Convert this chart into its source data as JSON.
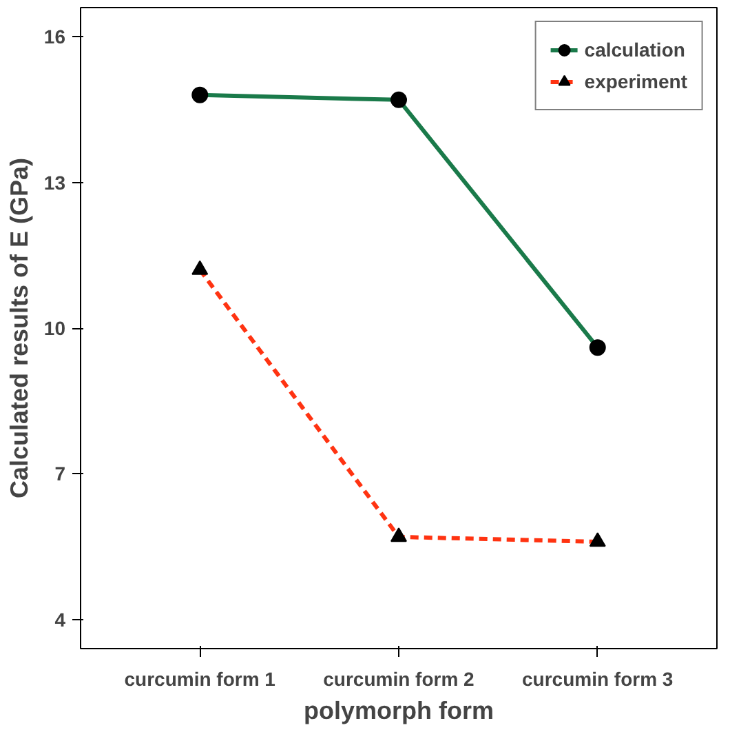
{
  "chart_data": {
    "type": "line",
    "xlabel": "polymorph form",
    "ylabel": "Calculated results of E (GPa)",
    "categories": [
      "curcumin form 1",
      "curcumin form 2",
      "curcumin form 3"
    ],
    "series": [
      {
        "name": "calculation",
        "color": "#1a7a4a",
        "values": [
          14.8,
          14.7,
          9.6
        ],
        "marker": "circle",
        "line_style": "solid"
      },
      {
        "name": "experiment",
        "color": "#ff3311",
        "values": [
          11.2,
          5.7,
          5.6
        ],
        "marker": "triangle",
        "line_style": "dashed"
      }
    ],
    "ylim": [
      3.4,
      16.6
    ],
    "yticks": [
      4,
      7,
      10,
      13,
      16
    ],
    "grid": false,
    "legend": "top right"
  }
}
